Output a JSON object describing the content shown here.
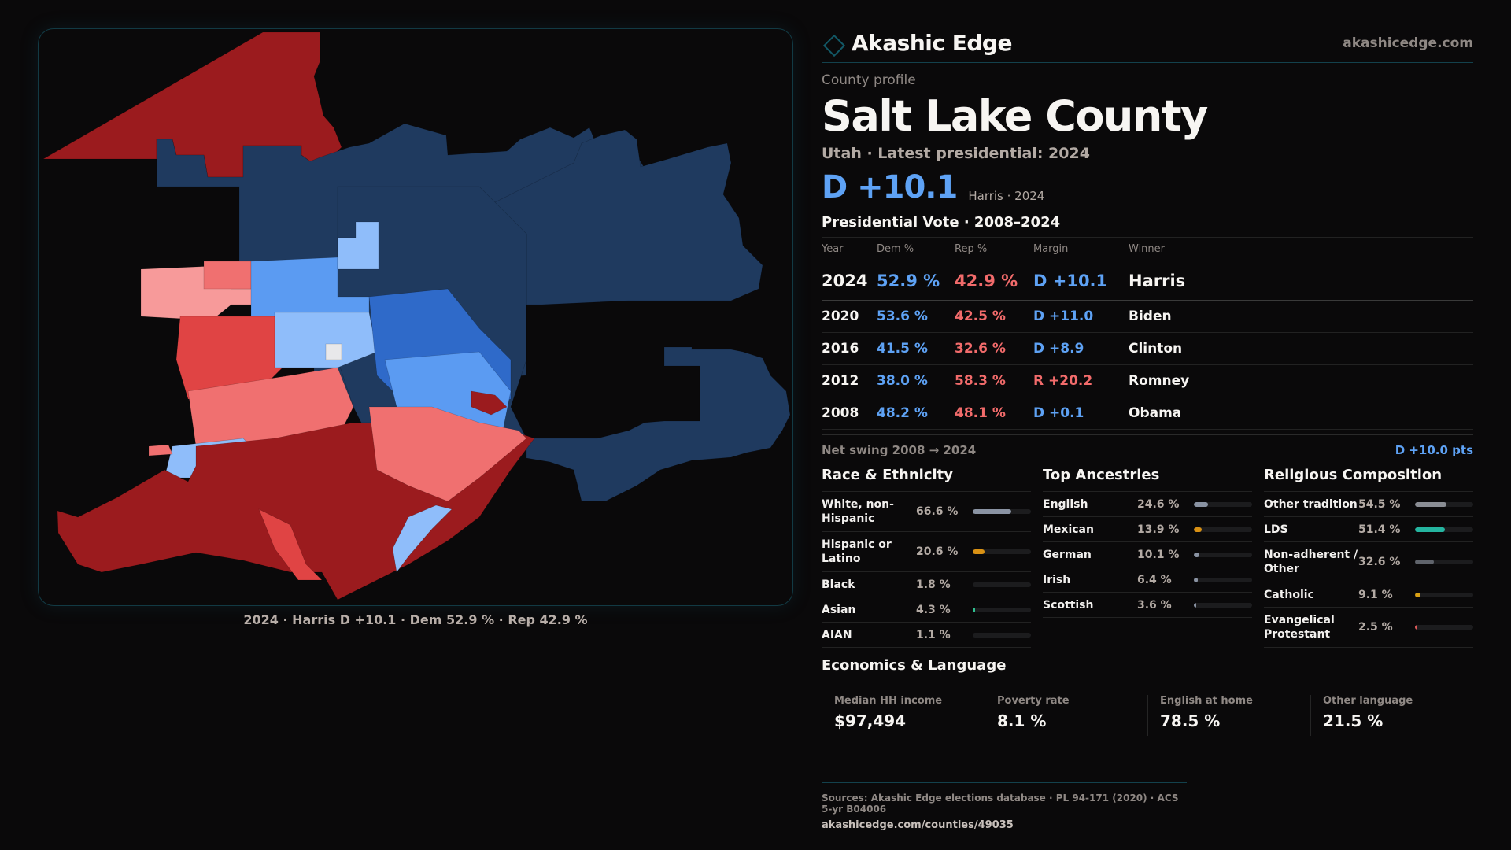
{
  "brand": {
    "name": "Akashic Edge",
    "url": "akashicedge.com",
    "logo_icon": "diamond-outline-icon"
  },
  "profile": {
    "eyebrow": "County profile",
    "title": "Salt Lake County",
    "subtitle": "Utah · Latest presidential: 2024",
    "headline_margin": "D +10.1",
    "headline_note": "Harris · 2024"
  },
  "map": {
    "caption": "2024 · Harris D +10.1 · Dem 52.9 % · Rep 42.9 %",
    "colors": {
      "safe_d": "#1f3a5f",
      "likely_d": "#2f6ac9",
      "lean_d": "#5b9bf2",
      "tilt_d": "#8fbdfa",
      "tossup": "#e8e8ea",
      "tilt_r": "#f79a9a",
      "lean_r": "#f07070",
      "likely_r": "#e04444",
      "safe_r": "#9b1b1e"
    }
  },
  "presidential": {
    "title": "Presidential Vote · 2008–2024",
    "columns": [
      "Year",
      "Dem %",
      "Rep %",
      "Margin",
      "Winner"
    ],
    "rows": [
      {
        "year": "2024",
        "dem": "52.9 %",
        "rep": "42.9 %",
        "margin": "D +10.1",
        "party": "D",
        "winner": "Harris"
      },
      {
        "year": "2020",
        "dem": "53.6 %",
        "rep": "42.5 %",
        "margin": "D +11.0",
        "party": "D",
        "winner": "Biden"
      },
      {
        "year": "2016",
        "dem": "41.5 %",
        "rep": "32.6 %",
        "margin": "D +8.9",
        "party": "D",
        "winner": "Clinton"
      },
      {
        "year": "2012",
        "dem": "38.0 %",
        "rep": "58.3 %",
        "margin": "R +20.2",
        "party": "R",
        "winner": "Romney"
      },
      {
        "year": "2008",
        "dem": "48.2 %",
        "rep": "48.1 %",
        "margin": "D +0.1",
        "party": "D",
        "winner": "Obama"
      }
    ],
    "swing_label": "Net swing 2008 → 2024",
    "swing_value": "D +10.0 pts"
  },
  "race": {
    "title": "Race & Ethnicity",
    "items": [
      {
        "label": "White, non-Hispanic",
        "value": "66.6 %",
        "pct": 66.6,
        "color": "#8a93a3",
        "tall": true
      },
      {
        "label": "Hispanic or Latino",
        "value": "20.6 %",
        "pct": 20.6,
        "color": "#d99114",
        "tall": true
      },
      {
        "label": "Black",
        "value": "1.8 %",
        "pct": 1.8,
        "color": "#8b6bd6",
        "tall": false
      },
      {
        "label": "Asian",
        "value": "4.3 %",
        "pct": 4.3,
        "color": "#2fbf8f",
        "tall": false
      },
      {
        "label": "AIAN",
        "value": "1.1 %",
        "pct": 1.1,
        "color": "#d9742a",
        "tall": false
      }
    ]
  },
  "ancestry": {
    "title": "Top Ancestries",
    "items": [
      {
        "label": "English",
        "value": "24.6 %",
        "pct": 24.6,
        "color": "#8a93a3"
      },
      {
        "label": "Mexican",
        "value": "13.9 %",
        "pct": 13.9,
        "color": "#d99114"
      },
      {
        "label": "German",
        "value": "10.1 %",
        "pct": 10.1,
        "color": "#8a93a3"
      },
      {
        "label": "Irish",
        "value": "6.4 %",
        "pct": 6.4,
        "color": "#8a93a3"
      },
      {
        "label": "Scottish",
        "value": "3.6 %",
        "pct": 3.6,
        "color": "#8a93a3"
      }
    ]
  },
  "religion": {
    "title": "Religious Composition",
    "items": [
      {
        "label": "Other tradition",
        "value": "54.5 %",
        "pct": 54.5,
        "color": "#8a8d94",
        "tall": false
      },
      {
        "label": "LDS",
        "value": "51.4 %",
        "pct": 51.4,
        "color": "#25b5a0",
        "tall": false
      },
      {
        "label": "Non-adherent / Other",
        "value": "32.6 %",
        "pct": 32.6,
        "color": "#5f636b",
        "tall": true
      },
      {
        "label": "Catholic",
        "value": "9.1 %",
        "pct": 9.1,
        "color": "#d9a014",
        "tall": false
      },
      {
        "label": "Evangelical Protestant",
        "value": "2.5 %",
        "pct": 2.5,
        "color": "#e05a5a",
        "tall": true
      }
    ]
  },
  "economics": {
    "title": "Economics & Language",
    "items": [
      {
        "label": "Median HH income",
        "value": "$97,494"
      },
      {
        "label": "Poverty rate",
        "value": "8.1 %"
      },
      {
        "label": "English at home",
        "value": "78.5 %"
      },
      {
        "label": "Other language",
        "value": "21.5 %"
      }
    ]
  },
  "footer": {
    "sources": "Sources: Akashic Edge elections database · PL 94-171 (2020) · ACS 5-yr B04006",
    "url": "akashicedge.com/counties/49035"
  }
}
